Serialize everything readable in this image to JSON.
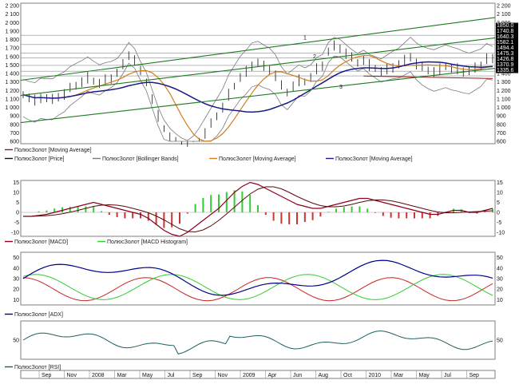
{
  "instrument": "ПолюсЗолот",
  "colors": {
    "price": "#111111",
    "bollinger": "#7a7a7a",
    "ma_short": "#d08020",
    "ma_long": "#1a1a8c",
    "ma_red": "#9c1c1c",
    "channel": "#1f7a1f",
    "macd": "#8b0020",
    "macd_signal": "#5a0a0a",
    "hist_pos": "#33cc33",
    "hist_neg": "#cc3333",
    "adx": "#00008b",
    "di_plus": "#33cc33",
    "di_minus": "#cc2222",
    "rsi": "#1e5f5f",
    "price_tag_bg": "#000000"
  },
  "price_pane": {
    "y_ticks": [
      "2 200",
      "2 100",
      "2 000",
      "1 900",
      "1 800",
      "1 700",
      "1 600",
      "1 500",
      "1 400",
      "1 300",
      "1 200",
      "1 100",
      "1 000",
      "900",
      "800",
      "700",
      "600"
    ],
    "price_tags": [
      "1850.0",
      "1740.8",
      "1640.3",
      "1582.1",
      "1494.4",
      "1475.3",
      "1426.8",
      "1370.9",
      "1335.6"
    ],
    "channel_labels": [
      "1",
      "2",
      "3"
    ],
    "legend": [
      {
        "text": "ПолюсЗолот [Moving Average]",
        "color_key": "ma_red"
      },
      {
        "text": "ПолюсЗолот [Price]",
        "color_key": "price"
      },
      {
        "text": "ПолюсЗолот [Bollinger Bands]",
        "color_key": "bollinger"
      },
      {
        "text": "ПолюсЗолот [Moving Average]",
        "color_key": "ma_short"
      },
      {
        "text": "ПолюсЗолот [Moving Average]",
        "color_key": "ma_long"
      }
    ]
  },
  "macd_pane": {
    "y_ticks": [
      "15",
      "10",
      "5",
      "0",
      "-5",
      "-10"
    ],
    "legend": [
      {
        "text": "ПолюсЗолот [MACD]",
        "color_key": "macd"
      },
      {
        "text": "ПолюсЗолот [MACD Histogram]",
        "color_key": "hist_pos"
      }
    ]
  },
  "adx_pane": {
    "y_ticks": [
      "50",
      "40",
      "30",
      "20",
      "10"
    ],
    "legend": [
      {
        "text": "ПолюсЗолот [ADX]",
        "color_key": "adx"
      }
    ]
  },
  "rsi_pane": {
    "y_ticks": [
      "50"
    ],
    "legend": [
      {
        "text": "ПолюсЗолот [RSI]",
        "color_key": "rsi"
      }
    ]
  },
  "x_axis": {
    "labels": [
      "Sep",
      "Nov",
      "2008",
      "Mar",
      "May",
      "Jul",
      "Sep",
      "Nov",
      "2009",
      "Apr",
      "Jun",
      "Aug",
      "Oct",
      "2010",
      "Mar",
      "May",
      "Jul",
      "Sep"
    ]
  }
}
